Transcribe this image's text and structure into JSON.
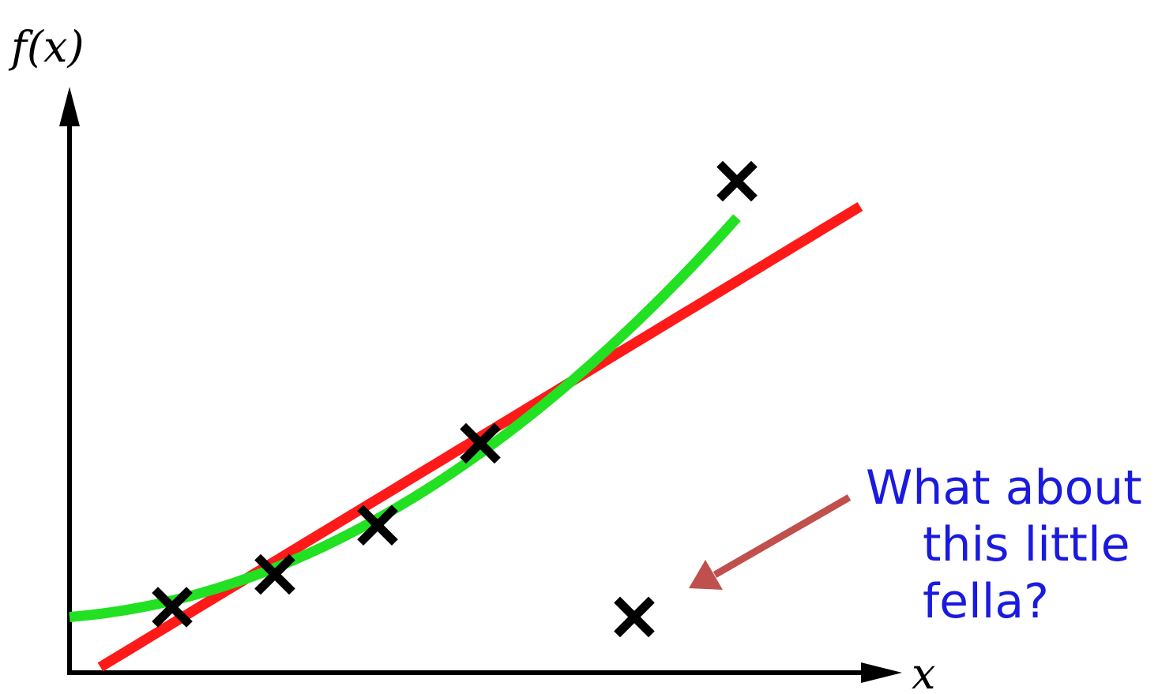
{
  "chart_data": {
    "type": "scatter",
    "xlabel": "x",
    "ylabel": "f(x)",
    "points": [
      {
        "x": 1,
        "y": 2
      },
      {
        "x": 2,
        "y": 3
      },
      {
        "x": 3,
        "y": 4.5
      },
      {
        "x": 4,
        "y": 7
      },
      {
        "x": 5.5,
        "y": 1.7
      },
      {
        "x": 6.5,
        "y": 15
      }
    ],
    "outlier_index": 4,
    "fits": [
      {
        "kind": "linear",
        "color": "#ff1a1a",
        "x_range": [
          0.3,
          7.7
        ],
        "coef": [
          -0.4,
          1.9
        ]
      },
      {
        "kind": "quadratic",
        "color": "#22e022",
        "x_range": [
          0,
          6.5
        ],
        "coef": [
          1.7,
          0.25,
          0.25
        ]
      }
    ],
    "xlim": [
      0,
      8
    ],
    "ylim": [
      0,
      18
    ]
  },
  "annotation": {
    "lines": [
      "What about",
      "this little",
      "fella?"
    ],
    "text_color": "#1a1adf",
    "arrow_color": "#c0504d"
  },
  "colors": {
    "axis": "#000000",
    "marker": "#000000"
  }
}
